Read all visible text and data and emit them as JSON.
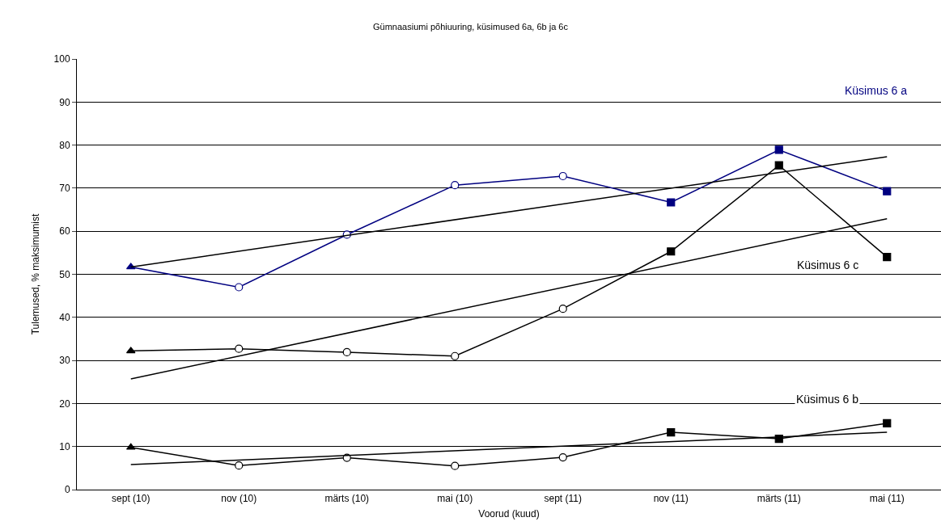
{
  "chart_data": {
    "type": "line",
    "title": "Gümnaasiumi põhiuuring, küsimused 6a, 6b ja 6c",
    "xlabel": "Voorud (kuud)",
    "ylabel": "Tulemused, % maksimumist",
    "categories": [
      "sept (10)",
      "nov (10)",
      "märts (10)",
      "mai (10)",
      "sept (11)",
      "nov (11)",
      "märts (11)",
      "mai (11)"
    ],
    "series": [
      {
        "name": "Küsimus 6 a",
        "color": "#000080",
        "values": [
          51.7,
          47,
          59.2,
          70.7,
          72.8,
          66.7,
          78.9,
          69.3
        ],
        "marker": [
          "triangle",
          "circle",
          "circle",
          "circle",
          "circle",
          "square",
          "square",
          "square"
        ]
      },
      {
        "name": "Küsimus 6 c",
        "color": "#000000",
        "values": [
          32.2,
          32.7,
          31.9,
          31.0,
          42.0,
          55.3,
          75.3,
          54.0
        ],
        "marker": [
          "triangle",
          "circle",
          "circle",
          "circle",
          "circle",
          "square",
          "square",
          "square"
        ]
      },
      {
        "name": "Küsimus 6 b",
        "color": "#000000",
        "values": [
          9.8,
          5.6,
          7.4,
          5.5,
          7.5,
          13.3,
          11.8,
          15.4
        ],
        "marker": [
          "triangle",
          "circle",
          "circle",
          "circle",
          "circle",
          "square",
          "square",
          "square"
        ]
      },
      {
        "color": "#000000",
        "x": [
          "sept (10)",
          "mai (11)"
        ],
        "values": [
          51.7,
          77.3
        ],
        "marker": "none"
      },
      {
        "color": "#000000",
        "x": [
          "sept (10)",
          "mai (11)"
        ],
        "values": [
          25.7,
          62.9
        ],
        "marker": "none"
      },
      {
        "color": "#000000",
        "x": [
          "sept (10)",
          "mai (11)"
        ],
        "values": [
          5.8,
          13.3
        ],
        "marker": "none"
      }
    ],
    "ylim": [
      0,
      100
    ],
    "yticks": [
      0,
      10,
      20,
      30,
      40,
      50,
      60,
      70,
      80,
      90,
      100
    ],
    "grid": "y",
    "legend": false,
    "line_style": "solid"
  }
}
